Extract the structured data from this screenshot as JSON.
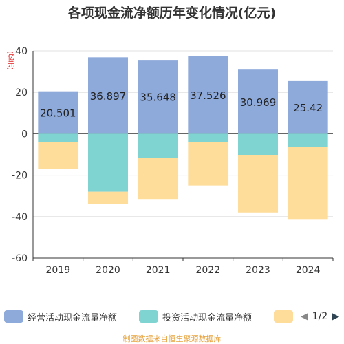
{
  "title": "各项现金流净额历年变化情况(亿元)",
  "source": "制图数据来自恒生聚源数据库",
  "legend": {
    "items": [
      {
        "label": "经营活动现金流量净额",
        "color": "#8eaadb"
      },
      {
        "label": "投资活动现金流量净额",
        "color": "#7fd3d0"
      },
      {
        "label": "",
        "color": "#fedc9a"
      }
    ],
    "pager": {
      "text": "1/2",
      "prev_icon": "triangle-left-icon",
      "next_icon": "triangle-right-icon"
    }
  },
  "chart_data": {
    "type": "bar",
    "stacked": true,
    "categories": [
      "2019",
      "2020",
      "2021",
      "2022",
      "2023",
      "2024"
    ],
    "ylabel": "(亿元)",
    "ylim": [
      -60,
      40
    ],
    "yticks": [
      40,
      20,
      0,
      -20,
      -40,
      -60
    ],
    "grid": true,
    "series": [
      {
        "name": "经营活动现金流量净额",
        "color": "#8eaadb",
        "values": [
          20.501,
          36.897,
          35.648,
          37.526,
          30.969,
          25.42
        ],
        "labels": [
          "20.501",
          "36.897",
          "35.648",
          "37.526",
          "30.969",
          "25.42"
        ]
      },
      {
        "name": "投资活动现金流量净额",
        "color": "#7fd3d0",
        "values": [
          -4,
          -28,
          -11.5,
          -4,
          -10.5,
          -6.5
        ]
      },
      {
        "name": "",
        "color": "#fedc9a",
        "values": [
          -13,
          -6,
          -20,
          -21,
          -27.5,
          -35
        ]
      }
    ]
  }
}
